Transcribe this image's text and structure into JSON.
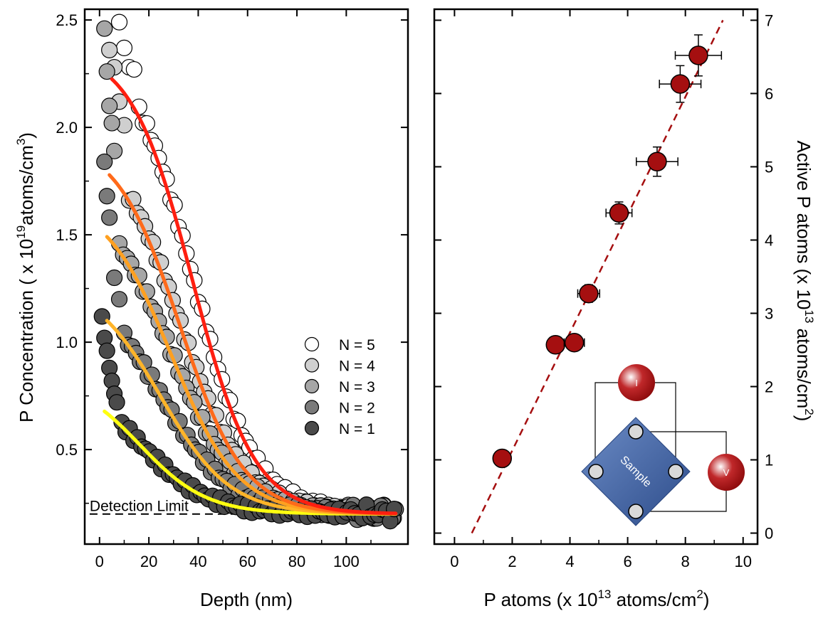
{
  "chart_data": [
    {
      "type": "scatter",
      "xlabel": "Depth (nm)",
      "ylabel": {
        "pre": "P Concentration ( x 10",
        "exp1": "19",
        "mid": "atoms/cm",
        "exp2": "3",
        "post": ")"
      },
      "xlim": [
        -6,
        125
      ],
      "ylim": [
        0.06,
        2.55
      ],
      "xticks": [
        0,
        20,
        40,
        60,
        80,
        100
      ],
      "yticks": [
        0.5,
        1.0,
        1.5,
        2.0,
        2.5
      ],
      "ytick_labels": [
        "0.5",
        "1.0",
        "1.5",
        "2.0",
        "2.5"
      ],
      "detection_limit": {
        "label": "Detection Limit",
        "value": 0.2
      },
      "legend_position": "center-right",
      "series": [
        {
          "name": "N = 5",
          "color": "#ffffff",
          "fit_color": "#ff1f10",
          "peak": 2.3,
          "x0": 42,
          "w": 12.5,
          "start": 5,
          "first": [
            [
              8,
              2.49
            ],
            [
              10,
              2.37
            ],
            [
              12,
              2.28
            ],
            [
              14,
              2.27
            ]
          ]
        },
        {
          "name": "N = 4",
          "color": "#cfcfcf",
          "fit_color": "#ff6a1a",
          "peak": 1.85,
          "x0": 36,
          "w": 13,
          "start": 4,
          "first": [
            [
              4,
              2.36
            ],
            [
              6,
              2.28
            ],
            [
              8,
              2.12
            ],
            [
              10,
              2.01
            ]
          ]
        },
        {
          "name": "N = 3",
          "color": "#a6a6a6",
          "fit_color": "#ffa020",
          "peak": 1.55,
          "x0": 32,
          "w": 13.5,
          "start": 3,
          "first": [
            [
              2,
              2.46
            ],
            [
              3,
              2.26
            ],
            [
              4,
              2.1
            ],
            [
              5,
              2.02
            ],
            [
              6,
              1.89
            ]
          ]
        },
        {
          "name": "N = 2",
          "color": "#7a7a7a",
          "fit_color": "#ffb428",
          "peak": 1.15,
          "x0": 27,
          "w": 14,
          "start": 3,
          "first": [
            [
              2,
              1.84
            ],
            [
              3,
              1.68
            ],
            [
              4,
              1.58
            ],
            [
              6,
              1.3
            ],
            [
              8,
              1.2
            ]
          ]
        },
        {
          "name": "N = 1",
          "color": "#4a4a4a",
          "fit_color": "#ffff10",
          "peak": 0.7,
          "x0": 17,
          "w": 13.5,
          "start": 2,
          "first": [
            [
              1,
              1.12
            ],
            [
              2,
              1.02
            ],
            [
              3,
              0.96
            ],
            [
              4,
              0.88
            ],
            [
              5,
              0.82
            ],
            [
              6,
              0.76
            ],
            [
              7,
              0.72
            ]
          ]
        }
      ]
    },
    {
      "type": "scatter",
      "xlabel": {
        "pre": "P atoms (x 10",
        "exp1": "13",
        "mid": " atoms/cm",
        "exp2": "2",
        "post": ")"
      },
      "ylabel": {
        "pre": "Active P atoms (x 10",
        "exp1": "13",
        "mid": " atoms/cm",
        "exp2": "2",
        "post": ")"
      },
      "xlim": [
        -0.7,
        10.5
      ],
      "ylim": [
        -0.15,
        7.15
      ],
      "xticks": [
        0,
        2,
        4,
        6,
        8,
        10
      ],
      "yticks": [
        0,
        1,
        2,
        3,
        4,
        5,
        6,
        7
      ],
      "point_color": "#a50f10",
      "points": [
        {
          "x": 1.65,
          "y": 1.02,
          "xerr": 0,
          "yerr": 0
        },
        {
          "x": 3.5,
          "y": 2.57,
          "xerr": 0,
          "yerr": 0
        },
        {
          "x": 4.15,
          "y": 2.6,
          "xerr": 0.35,
          "yerr": 0
        },
        {
          "x": 4.65,
          "y": 3.27,
          "xerr": 0.38,
          "yerr": 0.12
        },
        {
          "x": 5.7,
          "y": 4.37,
          "xerr": 0.45,
          "yerr": 0.15
        },
        {
          "x": 7.02,
          "y": 5.07,
          "xerr": 0.72,
          "yerr": 0.2
        },
        {
          "x": 7.82,
          "y": 6.13,
          "xerr": 0.72,
          "yerr": 0.25
        },
        {
          "x": 8.45,
          "y": 6.52,
          "xerr": 0.8,
          "yerr": 0.28
        }
      ],
      "fit_line": {
        "color": "#a50f10",
        "x1": 0.6,
        "y1": 0.0,
        "x2": 9.3,
        "y2": 7.0
      },
      "inset": {
        "sample_label": "Sample",
        "current_label": "I",
        "voltage_label": "V",
        "square_color": "#3d5f9c"
      }
    }
  ]
}
